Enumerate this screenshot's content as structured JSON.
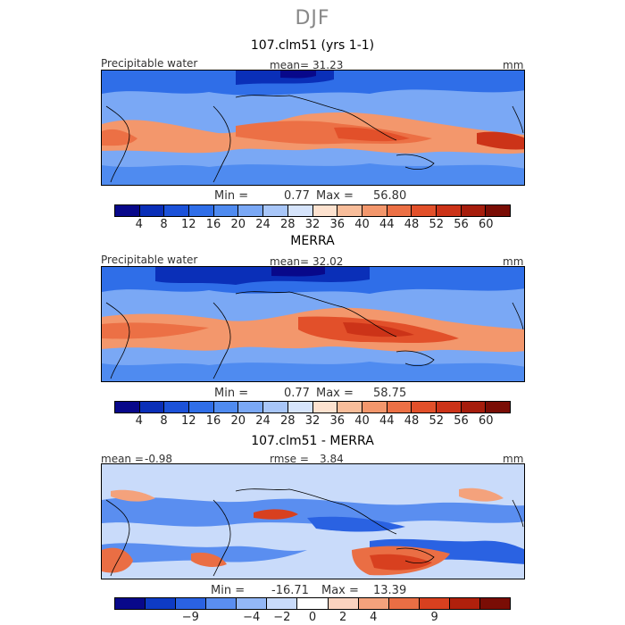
{
  "title": "DJF",
  "palette": {
    "full": [
      "#08088a",
      "#0a2fb8",
      "#1c52d9",
      "#2f6ee8",
      "#4f8bf0",
      "#7aa8f5",
      "#a8c6f8",
      "#d6e4fb",
      "#fde2cf",
      "#f8bd9a",
      "#f3976c",
      "#ec7045",
      "#e2502a",
      "#cc3318",
      "#a61d0c",
      "#7a0d05"
    ],
    "diff": [
      "#08088a",
      "#0e3bc4",
      "#2a62e2",
      "#5a8ef0",
      "#93b7f6",
      "#c9dbfa",
      "#ffffff",
      "#fbd3bf",
      "#f4a27c",
      "#ea6e44",
      "#d8401f",
      "#b0200c",
      "#7a0d05"
    ]
  },
  "panels": [
    {
      "title": "107.clm51 (yrs 1-1)",
      "left_label": "Precipitable water",
      "mean_label": "mean=",
      "mean_value": "31.23",
      "units": "mm",
      "min_label": "Min =",
      "min_value": "0.77",
      "max_label": "Max =",
      "max_value": "56.80",
      "ticks": [
        "4",
        "8",
        "12",
        "16",
        "20",
        "24",
        "28",
        "32",
        "36",
        "40",
        "44",
        "48",
        "52",
        "56",
        "60"
      ]
    },
    {
      "title": "MERRA",
      "left_label": "Precipitable water",
      "mean_label": "mean=",
      "mean_value": "32.02",
      "units": "mm",
      "min_label": "Min =",
      "min_value": "0.77",
      "max_label": "Max =",
      "max_value": "58.75",
      "ticks": [
        "4",
        "8",
        "12",
        "16",
        "20",
        "24",
        "28",
        "32",
        "36",
        "40",
        "44",
        "48",
        "52",
        "56",
        "60"
      ]
    },
    {
      "title": "107.clm51 - MERRA",
      "left_label": "mean =",
      "left_value": "-0.98",
      "mid_label": "rmse =",
      "mid_value": "3.84",
      "units": "mm",
      "min_label": "Min =",
      "min_value": "-16.71",
      "max_label": "Max =",
      "max_value": "13.39",
      "ticks": [
        "-9",
        "-4",
        "-2",
        "0",
        "2",
        "4",
        "9"
      ]
    }
  ]
}
